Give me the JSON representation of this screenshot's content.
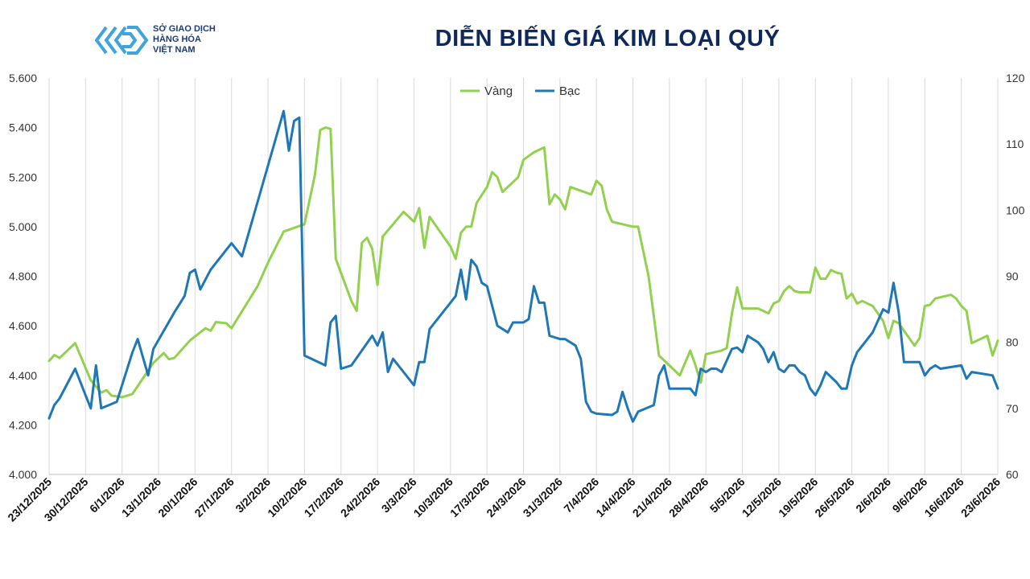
{
  "brand": {
    "line1": "SỞ GIAO DỊCH",
    "line2": "HÀNG HÓA",
    "line3": "VIỆT NAM",
    "color": "#1f3a73",
    "icon_color": "#3fa3dc"
  },
  "chart_data": {
    "type": "line",
    "title": "DIỄN BIẾN GIÁ KIM LOẠI QUÝ",
    "title_color": "#10295c",
    "legend_position": "top-center",
    "grid": "vertical",
    "x_range": [
      0,
      182
    ],
    "categories": [
      "23/12/2025",
      "30/12/2025",
      "6/1/2026",
      "13/1/2026",
      "20/1/2026",
      "27/1/2026",
      "3/2/2026",
      "10/2/2026",
      "17/2/2026",
      "24/2/2026",
      "3/3/2026",
      "10/3/2026",
      "17/3/2026",
      "24/3/2026",
      "31/3/2026",
      "7/4/2026",
      "14/4/2026",
      "21/4/2026",
      "28/4/2026",
      "5/5/2026",
      "12/5/2026",
      "19/5/2026",
      "26/5/2026",
      "2/6/2026",
      "9/6/2026",
      "16/6/2026",
      "23/6/2026"
    ],
    "category_step_days": 7,
    "y_left": {
      "ylim": [
        4000,
        5600
      ],
      "ticks": [
        "4.000",
        "4.200",
        "4.400",
        "4.600",
        "4.800",
        "5.000",
        "5.200",
        "5.400",
        "5.600"
      ],
      "tick_values": [
        4000,
        4200,
        4400,
        4600,
        4800,
        5000,
        5200,
        5400,
        5600
      ]
    },
    "y_right": {
      "ylim": [
        60,
        120
      ],
      "ticks": [
        "60",
        "70",
        "80",
        "90",
        "100",
        "110",
        "120"
      ],
      "tick_values": [
        60,
        70,
        80,
        90,
        100,
        110,
        120
      ]
    },
    "series": [
      {
        "name": "Vàng",
        "axis": "left",
        "color": "#92d050",
        "points": [
          [
            0,
            4458
          ],
          [
            1,
            4482
          ],
          [
            2,
            4470
          ],
          [
            5,
            4530
          ],
          [
            8,
            4380
          ],
          [
            10,
            4330
          ],
          [
            11,
            4340
          ],
          [
            12,
            4318
          ],
          [
            14,
            4312
          ],
          [
            16,
            4325
          ],
          [
            20,
            4450
          ],
          [
            22,
            4490
          ],
          [
            23,
            4465
          ],
          [
            24,
            4470
          ],
          [
            27,
            4540
          ],
          [
            30,
            4590
          ],
          [
            31,
            4580
          ],
          [
            32,
            4615
          ],
          [
            34,
            4610
          ],
          [
            35,
            4590
          ],
          [
            40,
            4760
          ],
          [
            42,
            4855
          ],
          [
            45,
            4980
          ],
          [
            49,
            5010
          ],
          [
            51,
            5210
          ],
          [
            52,
            5390
          ],
          [
            53,
            5400
          ],
          [
            54,
            5395
          ],
          [
            55,
            4870
          ],
          [
            58,
            4700
          ],
          [
            59,
            4660
          ],
          [
            60,
            4935
          ],
          [
            61,
            4955
          ],
          [
            62,
            4910
          ],
          [
            63,
            4765
          ],
          [
            64,
            4960
          ],
          [
            68,
            5060
          ],
          [
            69,
            5040
          ],
          [
            70,
            5020
          ],
          [
            71,
            5075
          ],
          [
            72,
            4915
          ],
          [
            73,
            5040
          ],
          [
            77,
            4920
          ],
          [
            78,
            4870
          ],
          [
            79,
            4975
          ],
          [
            80,
            5000
          ],
          [
            81,
            5000
          ],
          [
            82,
            5095
          ],
          [
            84,
            5160
          ],
          [
            85,
            5220
          ],
          [
            86,
            5200
          ],
          [
            87,
            5140
          ],
          [
            89,
            5180
          ],
          [
            90,
            5200
          ],
          [
            91,
            5270
          ],
          [
            93,
            5300
          ],
          [
            95,
            5320
          ],
          [
            96,
            5090
          ],
          [
            97,
            5130
          ],
          [
            98,
            5110
          ],
          [
            99,
            5070
          ],
          [
            100,
            5160
          ],
          [
            104,
            5130
          ],
          [
            105,
            5185
          ],
          [
            106,
            5165
          ],
          [
            107,
            5070
          ],
          [
            108,
            5020
          ],
          [
            112,
            5000
          ],
          [
            113,
            5000
          ],
          [
            115,
            4800
          ],
          [
            117,
            4480
          ],
          [
            120,
            4420
          ],
          [
            121,
            4400
          ],
          [
            123,
            4500
          ],
          [
            124,
            4440
          ],
          [
            125,
            4370
          ],
          [
            126,
            4485
          ],
          [
            129,
            4500
          ],
          [
            130,
            4510
          ],
          [
            131,
            4650
          ],
          [
            132,
            4755
          ],
          [
            133,
            4670
          ],
          [
            135,
            4670
          ],
          [
            136,
            4670
          ],
          [
            138,
            4650
          ],
          [
            139,
            4690
          ],
          [
            140,
            4700
          ],
          [
            141,
            4740
          ],
          [
            142,
            4760
          ],
          [
            143,
            4740
          ],
          [
            144,
            4735
          ],
          [
            146,
            4735
          ],
          [
            147,
            4835
          ],
          [
            148,
            4790
          ],
          [
            149,
            4790
          ],
          [
            150,
            4825
          ],
          [
            151,
            4815
          ],
          [
            152,
            4810
          ],
          [
            153,
            4710
          ],
          [
            154,
            4730
          ],
          [
            155,
            4690
          ],
          [
            156,
            4700
          ],
          [
            158,
            4680
          ],
          [
            160,
            4620
          ],
          [
            161,
            4550
          ],
          [
            162,
            4620
          ],
          [
            163,
            4610
          ],
          [
            166,
            4520
          ],
          [
            167,
            4550
          ],
          [
            168,
            4680
          ],
          [
            169,
            4685
          ],
          [
            170,
            4710
          ],
          [
            173,
            4725
          ],
          [
            174,
            4710
          ],
          [
            175,
            4680
          ],
          [
            176,
            4660
          ],
          [
            177,
            4530
          ],
          [
            180,
            4560
          ],
          [
            181,
            4480
          ],
          [
            182,
            4540
          ]
        ]
      },
      {
        "name": "Bạc",
        "axis": "right",
        "color": "#1f77b4",
        "points": [
          [
            0,
            68.5
          ],
          [
            1,
            70.5
          ],
          [
            2,
            71.5
          ],
          [
            5,
            76.0
          ],
          [
            7,
            72.0
          ],
          [
            8,
            70.0
          ],
          [
            9,
            76.5
          ],
          [
            10,
            70.0
          ],
          [
            13,
            71.0
          ],
          [
            16,
            78.5
          ],
          [
            17,
            80.5
          ],
          [
            19,
            75.0
          ],
          [
            20,
            79.0
          ],
          [
            24,
            84.5
          ],
          [
            26,
            87.0
          ],
          [
            27,
            90.5
          ],
          [
            28,
            91.0
          ],
          [
            29,
            88.0
          ],
          [
            31,
            91.0
          ],
          [
            35,
            95.0
          ],
          [
            37,
            93.0
          ],
          [
            45,
            115.0
          ],
          [
            46,
            109.0
          ],
          [
            47,
            113.5
          ],
          [
            48,
            114.0
          ],
          [
            49,
            78.0
          ],
          [
            53,
            76.5
          ],
          [
            54,
            83.0
          ],
          [
            55,
            84.0
          ],
          [
            56,
            76.0
          ],
          [
            58,
            76.5
          ],
          [
            62,
            81.0
          ],
          [
            63,
            79.5
          ],
          [
            64,
            81.5
          ],
          [
            65,
            75.5
          ],
          [
            66,
            77.5
          ],
          [
            70,
            73.5
          ],
          [
            71,
            77.0
          ],
          [
            72,
            77.0
          ],
          [
            73,
            82.0
          ],
          [
            77,
            86.0
          ],
          [
            78,
            87.0
          ],
          [
            79,
            91.0
          ],
          [
            80,
            86.5
          ],
          [
            81,
            92.5
          ],
          [
            82,
            91.5
          ],
          [
            83,
            89.0
          ],
          [
            84,
            88.5
          ],
          [
            86,
            82.5
          ],
          [
            87,
            82.0
          ],
          [
            88,
            81.5
          ],
          [
            89,
            83.0
          ],
          [
            90,
            83.0
          ],
          [
            91,
            83.0
          ],
          [
            92,
            83.5
          ],
          [
            93,
            88.5
          ],
          [
            94,
            86.0
          ],
          [
            95,
            86.0
          ],
          [
            96,
            81.0
          ],
          [
            98,
            80.5
          ],
          [
            99,
            80.5
          ],
          [
            100,
            80.0
          ],
          [
            101,
            79.5
          ],
          [
            102,
            77.5
          ],
          [
            103,
            71.0
          ],
          [
            104,
            69.5
          ],
          [
            105,
            69.2
          ],
          [
            108,
            69.0
          ],
          [
            109,
            69.5
          ],
          [
            110,
            72.5
          ],
          [
            111,
            70.0
          ],
          [
            112,
            68.0
          ],
          [
            113,
            69.5
          ],
          [
            116,
            70.5
          ],
          [
            117,
            75.0
          ],
          [
            118,
            76.5
          ],
          [
            119,
            73.0
          ],
          [
            123,
            73.0
          ],
          [
            124,
            72.0
          ],
          [
            125,
            76.0
          ],
          [
            126,
            75.5
          ],
          [
            127,
            76.0
          ],
          [
            128,
            76.0
          ],
          [
            129,
            75.5
          ],
          [
            131,
            79.0
          ],
          [
            132,
            79.2
          ],
          [
            133,
            78.5
          ],
          [
            134,
            81.0
          ],
          [
            135,
            80.5
          ],
          [
            136,
            80.0
          ],
          [
            137,
            79.0
          ],
          [
            138,
            77.0
          ],
          [
            139,
            78.5
          ],
          [
            140,
            76.0
          ],
          [
            141,
            75.5
          ],
          [
            142,
            76.5
          ],
          [
            143,
            76.5
          ],
          [
            144,
            75.5
          ],
          [
            145,
            75.0
          ],
          [
            146,
            73.0
          ],
          [
            147,
            72.0
          ],
          [
            148,
            73.5
          ],
          [
            149,
            75.5
          ],
          [
            151,
            74.0
          ],
          [
            152,
            73.0
          ],
          [
            153,
            73.0
          ],
          [
            154,
            76.5
          ],
          [
            155,
            78.5
          ],
          [
            156,
            79.5
          ],
          [
            158,
            81.5
          ],
          [
            160,
            85.0
          ],
          [
            161,
            84.5
          ],
          [
            162,
            89.0
          ],
          [
            163,
            84.5
          ],
          [
            164,
            77.0
          ],
          [
            167,
            77.0
          ],
          [
            168,
            75.0
          ],
          [
            169,
            76.0
          ],
          [
            170,
            76.5
          ],
          [
            171,
            76.0
          ],
          [
            175,
            76.5
          ],
          [
            176,
            74.5
          ],
          [
            177,
            75.5
          ],
          [
            181,
            75.0
          ],
          [
            182,
            73.0
          ]
        ]
      }
    ]
  }
}
